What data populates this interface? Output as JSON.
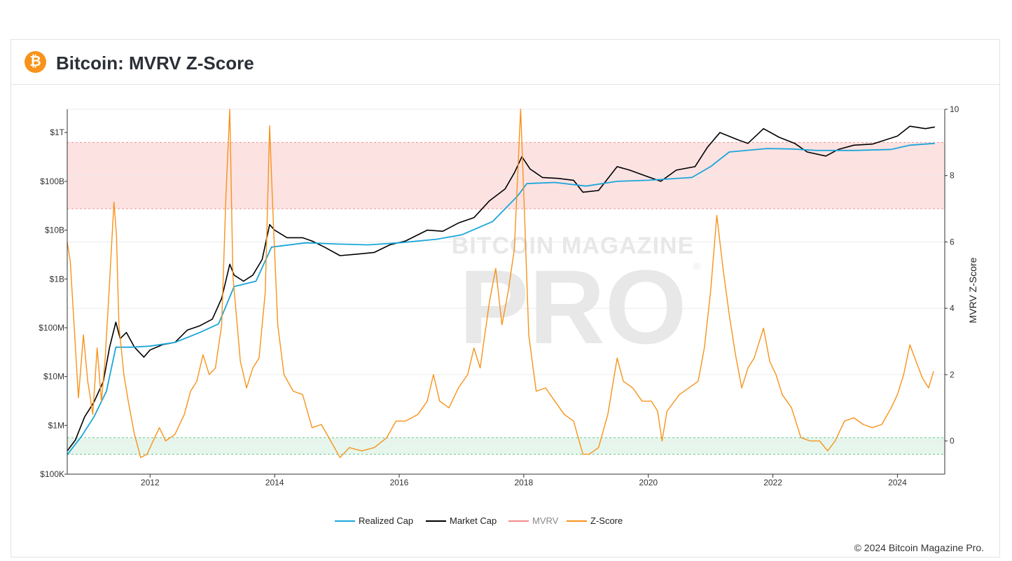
{
  "header": {
    "title": "Bitcoin: MVRV Z-Score",
    "logo_icon": "bitcoin-icon",
    "logo_symbol": "₿",
    "logo_color": "#f7931a"
  },
  "watermark": {
    "line1": "BITCOIN MAGAZINE",
    "line2": "PRO",
    "reg": "®"
  },
  "footer": {
    "copyright": "© 2024 Bitcoin Magazine Pro."
  },
  "colors": {
    "realized_cap": "#1aa6d9",
    "market_cap": "#000000",
    "mvrv": "#f08b8b",
    "zscore": "#f7931a",
    "red_zone": "#fde2e2",
    "green_zone": "#e6f6ec"
  },
  "chart_data": {
    "type": "line",
    "title": "Bitcoin: MVRV Z-Score",
    "x_ticks": [
      "2012",
      "2014",
      "2016",
      "2018",
      "2020",
      "2022",
      "2024"
    ],
    "x_range": [
      2010.67,
      2024.76
    ],
    "left_axis": {
      "scale": "log",
      "range": [
        100000,
        3000000000000
      ],
      "ticks": [
        {
          "value": 100000,
          "label": "$100K"
        },
        {
          "value": 1000000,
          "label": "$1M"
        },
        {
          "value": 10000000,
          "label": "$10M"
        },
        {
          "value": 100000000,
          "label": "$100M"
        },
        {
          "value": 1000000000,
          "label": "$1B"
        },
        {
          "value": 10000000000,
          "label": "$10B"
        },
        {
          "value": 100000000000,
          "label": "$100B"
        },
        {
          "value": 1000000000000,
          "label": "$1T"
        }
      ]
    },
    "right_axis": {
      "label": "MVRV Z-Score",
      "range": [
        -1,
        10
      ],
      "ticks": [
        0,
        2,
        4,
        6,
        8,
        10
      ]
    },
    "zones": {
      "red": [
        7,
        9
      ],
      "green": [
        -0.4,
        0.1
      ]
    },
    "legend": [
      "Realized Cap",
      "Market Cap",
      "MVRV",
      "Z-Score"
    ],
    "legend_position": "bottom-center",
    "series": [
      {
        "name": "Market Cap",
        "axis": "left",
        "points": [
          [
            2010.67,
            300000
          ],
          [
            2010.8,
            500000
          ],
          [
            2010.95,
            1500000
          ],
          [
            2011.1,
            3000000
          ],
          [
            2011.25,
            8000000
          ],
          [
            2011.35,
            40000000
          ],
          [
            2011.45,
            130000000
          ],
          [
            2011.52,
            60000000
          ],
          [
            2011.62,
            80000000
          ],
          [
            2011.75,
            40000000
          ],
          [
            2011.9,
            25000000
          ],
          [
            2012.0,
            35000000
          ],
          [
            2012.2,
            45000000
          ],
          [
            2012.4,
            50000000
          ],
          [
            2012.6,
            90000000
          ],
          [
            2012.8,
            110000000
          ],
          [
            2013.0,
            150000000
          ],
          [
            2013.15,
            400000000
          ],
          [
            2013.28,
            2000000000
          ],
          [
            2013.35,
            1200000000
          ],
          [
            2013.5,
            900000000
          ],
          [
            2013.65,
            1200000000
          ],
          [
            2013.8,
            2500000000
          ],
          [
            2013.92,
            13000000000
          ],
          [
            2014.0,
            10000000000
          ],
          [
            2014.2,
            7000000000
          ],
          [
            2014.45,
            7000000000
          ],
          [
            2014.6,
            6000000000
          ],
          [
            2014.8,
            4500000000
          ],
          [
            2015.05,
            3000000000
          ],
          [
            2015.3,
            3200000000
          ],
          [
            2015.6,
            3500000000
          ],
          [
            2015.85,
            5000000000
          ],
          [
            2016.1,
            6000000000
          ],
          [
            2016.45,
            10000000000
          ],
          [
            2016.7,
            9500000000
          ],
          [
            2016.95,
            14000000000
          ],
          [
            2017.2,
            18000000000
          ],
          [
            2017.45,
            40000000000
          ],
          [
            2017.7,
            70000000000
          ],
          [
            2017.85,
            150000000000
          ],
          [
            2017.97,
            320000000000
          ],
          [
            2018.1,
            180000000000
          ],
          [
            2018.3,
            120000000000
          ],
          [
            2018.55,
            115000000000
          ],
          [
            2018.8,
            105000000000
          ],
          [
            2018.95,
            60000000000
          ],
          [
            2019.2,
            65000000000
          ],
          [
            2019.5,
            200000000000
          ],
          [
            2019.7,
            170000000000
          ],
          [
            2019.95,
            130000000000
          ],
          [
            2020.2,
            100000000000
          ],
          [
            2020.45,
            170000000000
          ],
          [
            2020.75,
            200000000000
          ],
          [
            2020.95,
            500000000000
          ],
          [
            2021.15,
            1000000000000
          ],
          [
            2021.45,
            700000000000
          ],
          [
            2021.6,
            600000000000
          ],
          [
            2021.85,
            1200000000000
          ],
          [
            2022.1,
            800000000000
          ],
          [
            2022.35,
            600000000000
          ],
          [
            2022.55,
            400000000000
          ],
          [
            2022.85,
            330000000000
          ],
          [
            2023.05,
            450000000000
          ],
          [
            2023.3,
            550000000000
          ],
          [
            2023.6,
            580000000000
          ],
          [
            2023.8,
            700000000000
          ],
          [
            2024.0,
            850000000000
          ],
          [
            2024.2,
            1350000000000
          ],
          [
            2024.45,
            1200000000000
          ],
          [
            2024.6,
            1300000000000
          ]
        ]
      },
      {
        "name": "Realized Cap",
        "axis": "left",
        "points": [
          [
            2010.67,
            250000
          ],
          [
            2010.9,
            600000
          ],
          [
            2011.1,
            1500000
          ],
          [
            2011.3,
            5000000
          ],
          [
            2011.45,
            40000000
          ],
          [
            2011.7,
            40000000
          ],
          [
            2012.0,
            42000000
          ],
          [
            2012.4,
            50000000
          ],
          [
            2012.8,
            80000000
          ],
          [
            2013.1,
            120000000
          ],
          [
            2013.35,
            700000000
          ],
          [
            2013.7,
            900000000
          ],
          [
            2013.95,
            4500000000
          ],
          [
            2014.5,
            5500000000
          ],
          [
            2015.0,
            5200000000
          ],
          [
            2015.5,
            5000000000
          ],
          [
            2016.0,
            5500000000
          ],
          [
            2016.6,
            6500000000
          ],
          [
            2017.0,
            8000000000
          ],
          [
            2017.5,
            15000000000
          ],
          [
            2017.9,
            50000000000
          ],
          [
            2018.05,
            90000000000
          ],
          [
            2018.5,
            95000000000
          ],
          [
            2019.0,
            80000000000
          ],
          [
            2019.5,
            100000000000
          ],
          [
            2020.0,
            105000000000
          ],
          [
            2020.7,
            120000000000
          ],
          [
            2021.0,
            200000000000
          ],
          [
            2021.3,
            400000000000
          ],
          [
            2021.9,
            470000000000
          ],
          [
            2022.3,
            460000000000
          ],
          [
            2022.7,
            430000000000
          ],
          [
            2023.3,
            430000000000
          ],
          [
            2023.9,
            450000000000
          ],
          [
            2024.2,
            550000000000
          ],
          [
            2024.6,
            600000000000
          ]
        ]
      },
      {
        "name": "Z-Score",
        "axis": "right",
        "points": [
          [
            2010.67,
            6.0
          ],
          [
            2010.72,
            5.4
          ],
          [
            2010.78,
            3.5
          ],
          [
            2010.85,
            1.3
          ],
          [
            2010.93,
            3.2
          ],
          [
            2011.0,
            1.8
          ],
          [
            2011.08,
            0.8
          ],
          [
            2011.15,
            2.8
          ],
          [
            2011.22,
            1.2
          ],
          [
            2011.28,
            2.5
          ],
          [
            2011.35,
            4.8
          ],
          [
            2011.42,
            7.2
          ],
          [
            2011.46,
            6.2
          ],
          [
            2011.5,
            3.5
          ],
          [
            2011.58,
            2.0
          ],
          [
            2011.65,
            1.2
          ],
          [
            2011.75,
            0.2
          ],
          [
            2011.85,
            -0.5
          ],
          [
            2011.95,
            -0.4
          ],
          [
            2012.05,
            0.0
          ],
          [
            2012.15,
            0.4
          ],
          [
            2012.25,
            0.0
          ],
          [
            2012.4,
            0.2
          ],
          [
            2012.55,
            0.8
          ],
          [
            2012.65,
            1.5
          ],
          [
            2012.75,
            1.8
          ],
          [
            2012.85,
            2.6
          ],
          [
            2012.95,
            2.0
          ],
          [
            2013.05,
            2.2
          ],
          [
            2013.15,
            3.5
          ],
          [
            2013.22,
            7.5
          ],
          [
            2013.28,
            10.0
          ],
          [
            2013.33,
            5.0
          ],
          [
            2013.45,
            2.4
          ],
          [
            2013.55,
            1.6
          ],
          [
            2013.65,
            2.2
          ],
          [
            2013.75,
            2.5
          ],
          [
            2013.85,
            4.5
          ],
          [
            2013.92,
            9.5
          ],
          [
            2013.97,
            7.0
          ],
          [
            2014.05,
            3.5
          ],
          [
            2014.15,
            2.0
          ],
          [
            2014.3,
            1.5
          ],
          [
            2014.45,
            1.4
          ],
          [
            2014.6,
            0.4
          ],
          [
            2014.75,
            0.5
          ],
          [
            2014.9,
            0.0
          ],
          [
            2015.05,
            -0.5
          ],
          [
            2015.2,
            -0.2
          ],
          [
            2015.4,
            -0.3
          ],
          [
            2015.6,
            -0.2
          ],
          [
            2015.8,
            0.1
          ],
          [
            2015.95,
            0.6
          ],
          [
            2016.1,
            0.6
          ],
          [
            2016.3,
            0.8
          ],
          [
            2016.45,
            1.2
          ],
          [
            2016.55,
            2.0
          ],
          [
            2016.65,
            1.2
          ],
          [
            2016.8,
            1.0
          ],
          [
            2016.95,
            1.6
          ],
          [
            2017.1,
            2.0
          ],
          [
            2017.2,
            2.8
          ],
          [
            2017.3,
            2.2
          ],
          [
            2017.45,
            4.2
          ],
          [
            2017.55,
            5.2
          ],
          [
            2017.65,
            3.5
          ],
          [
            2017.75,
            4.5
          ],
          [
            2017.85,
            5.8
          ],
          [
            2017.95,
            10.0
          ],
          [
            2018.0,
            7.5
          ],
          [
            2018.08,
            3.2
          ],
          [
            2018.2,
            1.5
          ],
          [
            2018.35,
            1.6
          ],
          [
            2018.5,
            1.2
          ],
          [
            2018.65,
            0.8
          ],
          [
            2018.8,
            0.6
          ],
          [
            2018.95,
            -0.4
          ],
          [
            2019.05,
            -0.4
          ],
          [
            2019.2,
            -0.2
          ],
          [
            2019.35,
            0.8
          ],
          [
            2019.5,
            2.5
          ],
          [
            2019.6,
            1.8
          ],
          [
            2019.75,
            1.6
          ],
          [
            2019.9,
            1.2
          ],
          [
            2020.05,
            1.2
          ],
          [
            2020.15,
            0.9
          ],
          [
            2020.22,
            0.0
          ],
          [
            2020.3,
            0.9
          ],
          [
            2020.5,
            1.4
          ],
          [
            2020.65,
            1.6
          ],
          [
            2020.8,
            1.8
          ],
          [
            2020.9,
            2.8
          ],
          [
            2021.0,
            4.5
          ],
          [
            2021.1,
            6.8
          ],
          [
            2021.2,
            5.2
          ],
          [
            2021.3,
            3.8
          ],
          [
            2021.4,
            2.6
          ],
          [
            2021.5,
            1.6
          ],
          [
            2021.6,
            2.2
          ],
          [
            2021.7,
            2.5
          ],
          [
            2021.85,
            3.4
          ],
          [
            2021.95,
            2.4
          ],
          [
            2022.05,
            2.0
          ],
          [
            2022.15,
            1.4
          ],
          [
            2022.3,
            1.0
          ],
          [
            2022.45,
            0.1
          ],
          [
            2022.6,
            0.0
          ],
          [
            2022.75,
            0.0
          ],
          [
            2022.88,
            -0.3
          ],
          [
            2023.0,
            0.0
          ],
          [
            2023.15,
            0.6
          ],
          [
            2023.3,
            0.7
          ],
          [
            2023.45,
            0.5
          ],
          [
            2023.6,
            0.4
          ],
          [
            2023.75,
            0.5
          ],
          [
            2023.9,
            1.0
          ],
          [
            2024.0,
            1.4
          ],
          [
            2024.1,
            2.0
          ],
          [
            2024.2,
            2.9
          ],
          [
            2024.3,
            2.4
          ],
          [
            2024.4,
            1.9
          ],
          [
            2024.5,
            1.6
          ],
          [
            2024.58,
            2.1
          ]
        ]
      }
    ]
  }
}
